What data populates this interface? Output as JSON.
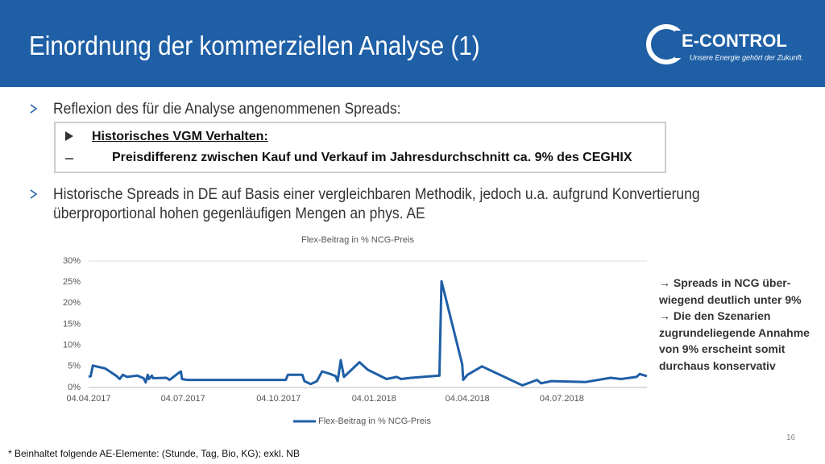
{
  "header": {
    "title": "Einordnung der kommerziellen Analyse (1)",
    "logo_name": "E-CONTROL",
    "logo_tagline": "Unsere Energie gehört der Zukunft."
  },
  "bullets": [
    "Reflexion des für die Analyse angenommenen Spreads:",
    "Historische Spreads in DE auf Basis einer vergleichbaren Methodik, jedoch u.a. aufgrund Konvertierung überproportional hohen gegenläufigen Mengen an phys. AE"
  ],
  "box": {
    "heading": "Historisches VGM Verhalten:",
    "item": "Preisdifferenz zwischen Kauf und Verkauf im Jahresdurchschnitt ca. 9% des CEGHIX"
  },
  "chart_data": {
    "type": "line",
    "title": "Flex-Beitrag in % NCG-Preis",
    "x": [
      "04.04.2017",
      "06.04.2017",
      "08.04.2017",
      "20.04.2017",
      "01.05.2017",
      "04.05.2017",
      "07.05.2017",
      "11.05.2017",
      "21.05.2017",
      "27.05.2017",
      "29.05.2017",
      "31.05.2017",
      "01.06.2017",
      "04.06.2017",
      "05.06.2017",
      "18.06.2017",
      "21.06.2017",
      "30.06.2017",
      "02.07.2017",
      "03.07.2017",
      "08.07.2017",
      "11.10.2017",
      "13.10.2017",
      "27.10.2017",
      "29.10.2017",
      "04.11.2017",
      "10.11.2017",
      "15.11.2017",
      "23.11.2017",
      "28.11.2017",
      "30.11.2017",
      "03.12.2017",
      "06.12.2017",
      "21.12.2017",
      "29.12.2017",
      "16.01.2018",
      "26.01.2018",
      "30.01.2018",
      "09.02.2018",
      "08.03.2018",
      "10.03.2018",
      "30.03.2018",
      "31.03.2018",
      "04.04.2018",
      "18.04.2018",
      "27.05.2018",
      "10.06.2018",
      "14.06.2018",
      "24.06.2018",
      "27.07.2018",
      "20.08.2018",
      "30.08.2018",
      "14.09.2018",
      "17.09.2018",
      "24.09.2018"
    ],
    "series": [
      {
        "name": "Flex-Beitrag in % NCG-Preis",
        "color": "#1f5fa6",
        "values": [
          2.5,
          2.7,
          5.2,
          4.5,
          2.7,
          2.0,
          3.0,
          2.5,
          2.8,
          2.2,
          1.2,
          3.0,
          2.0,
          2.8,
          2.2,
          2.3,
          1.8,
          3.5,
          3.8,
          2.0,
          1.8,
          1.8,
          3.0,
          3.0,
          1.5,
          0.8,
          1.5,
          3.8,
          3.2,
          2.7,
          1.5,
          6.5,
          2.5,
          6.0,
          4.2,
          2.0,
          2.5,
          2.0,
          2.3,
          2.8,
          25.2,
          5.5,
          1.8,
          3.0,
          5.0,
          0.5,
          1.8,
          1.0,
          1.5,
          1.3,
          2.3,
          2.0,
          2.5,
          3.2,
          2.7
        ]
      }
    ],
    "xlim": [
      "04.04.2017",
      "24.09.2018"
    ],
    "xticks": [
      "04.04.2017",
      "04.07.2017",
      "04.10.2017",
      "04.01.2018",
      "04.04.2018",
      "04.07.2018"
    ],
    "ylim": [
      0,
      30
    ],
    "yticks": [
      {
        "value": 0,
        "label": "0%"
      },
      {
        "value": 5,
        "label": "5%"
      },
      {
        "value": 10,
        "label": "10%"
      },
      {
        "value": 15,
        "label": "15%"
      },
      {
        "value": 20,
        "label": "20%"
      },
      {
        "value": 25,
        "label": "25%"
      },
      {
        "value": 30,
        "label": "30%"
      }
    ],
    "grid": false,
    "legend": "bottom"
  },
  "side_note": [
    "→ Spreads in NCG über-",
    "wiegend deutlich unter 9%",
    "→ Die den Szenarien",
    "zugrundeliegende Annahme",
    "von 9% erscheint somit",
    "durchaus konservativ"
  ],
  "footnote": "* Beinhaltet folgende AE-Elemente: (Stunde, Tag, Bio, KG); exkl. NB",
  "page_number": "16"
}
